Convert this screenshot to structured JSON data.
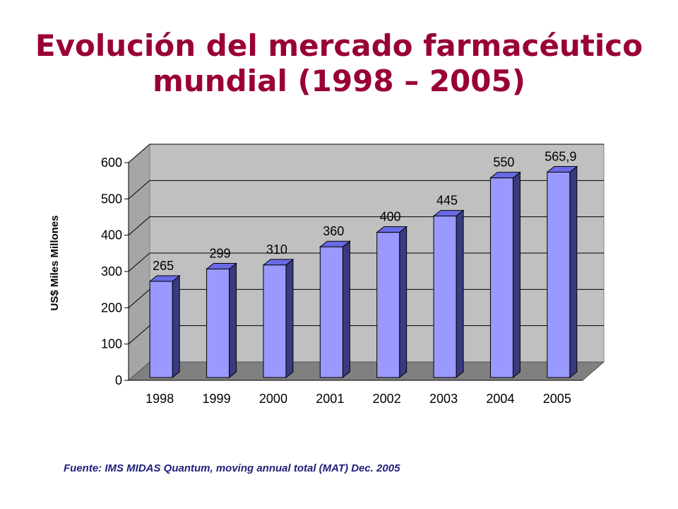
{
  "title": {
    "line1": "Evolución del mercado farmacéutico",
    "line2": "mundial (1998 – 2005)"
  },
  "source": "Fuente: IMS MIDAS Quantum, moving annual total (MAT) Dec. 2005",
  "colors": {
    "title": "#990033",
    "bar_front": "#9999ff",
    "bar_top": "#6a6ae6",
    "bar_side": "#3a3a80",
    "plot_back": "#c0c0c0",
    "plot_side": "#a6a6a6",
    "plot_floor": "#808080"
  },
  "chart_data": {
    "type": "bar",
    "title": "",
    "xlabel": "",
    "ylabel": "US$ Miles Millones",
    "categories": [
      "1998",
      "1999",
      "2000",
      "2001",
      "2002",
      "2003",
      "2004",
      "2005"
    ],
    "values": [
      265,
      299,
      310,
      360,
      400,
      445,
      550,
      565.9
    ],
    "data_labels": [
      "265",
      "299",
      "310",
      "360",
      "400",
      "445",
      "550",
      "565,9"
    ],
    "yticks": [
      0,
      100,
      200,
      300,
      400,
      500,
      600
    ],
    "ylim": [
      0,
      600
    ],
    "grid": true,
    "legend": "none",
    "style": "3d-column"
  }
}
